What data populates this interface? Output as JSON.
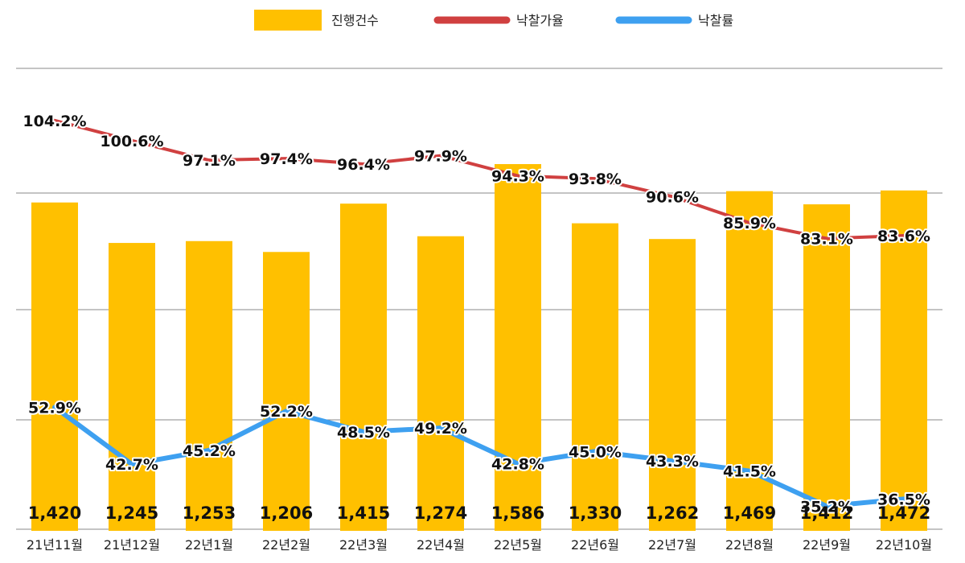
{
  "chart_data": {
    "type": "bar+line",
    "categories": [
      "21년11월",
      "21년12월",
      "22년1월",
      "22년2월",
      "22년3월",
      "22년4월",
      "22년5월",
      "22년6월",
      "22년7월",
      "22년8월",
      "22년9월",
      "22년10월"
    ],
    "bar_series": {
      "name": "진행건수",
      "values": [
        1420,
        1245,
        1253,
        1206,
        1415,
        1274,
        1586,
        1330,
        1262,
        1469,
        1412,
        1472
      ],
      "labels": [
        "1,420",
        "1,245",
        "1,253",
        "1,206",
        "1,415",
        "1,274",
        "1,586",
        "1,330",
        "1,262",
        "1,469",
        "1,412",
        "1,472"
      ],
      "color": "#FFC000",
      "ylim": [
        0,
        2000
      ]
    },
    "line_series": [
      {
        "name": "낙찰가율",
        "values": [
          104.2,
          100.6,
          97.1,
          97.4,
          96.4,
          97.9,
          94.3,
          93.8,
          90.6,
          85.9,
          83.1,
          83.6
        ],
        "labels": [
          "104.2%",
          "100.6%",
          "97.1%",
          "97.4%",
          "96.4%",
          "97.9%",
          "94.3%",
          "93.8%",
          "90.6%",
          "85.9%",
          "83.1%",
          "83.6%"
        ],
        "color": "#D04040"
      },
      {
        "name": "낙찰률",
        "values": [
          52.9,
          42.7,
          45.2,
          52.2,
          48.5,
          49.2,
          42.8,
          45.0,
          43.3,
          41.5,
          35.2,
          36.5
        ],
        "labels": [
          "52.9%",
          "42.7%",
          "45.2%",
          "52.2%",
          "48.5%",
          "49.2%",
          "42.8%",
          "45.0%",
          "43.3%",
          "41.5%",
          "35.2%",
          "36.5%"
        ],
        "color": "#3EA0F0"
      }
    ],
    "line_ylim": [
      20,
      120
    ],
    "legend": [
      "진행건수",
      "낙찰가율",
      "낙찰률"
    ],
    "legend_position": "top",
    "grid": true,
    "title": "",
    "xlabel": "",
    "ylabel": ""
  }
}
